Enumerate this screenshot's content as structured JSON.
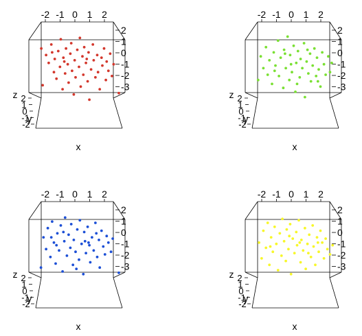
{
  "chart_data": [
    {
      "type": "scatter",
      "point_color": "#D3372C",
      "xlabel": "x",
      "ylabel": "y",
      "zlabel": "z",
      "x_ticks": [
        "-2",
        "-1",
        "0",
        "1",
        "2"
      ],
      "y_ticks": [
        "-2",
        "-1",
        "0",
        "1",
        "2"
      ],
      "z_ticks": [
        "-3",
        "-2",
        "-1",
        "0",
        "1",
        "2"
      ],
      "xlim": [
        -2.5,
        2.5
      ],
      "zlim": [
        -3.5,
        2.5
      ],
      "points": [
        [
          -2.18,
          0.9
        ],
        [
          -2.1,
          -1.9
        ],
        [
          -1.9,
          0.4
        ],
        [
          -1.75,
          -0.2
        ],
        [
          -1.6,
          1.2
        ],
        [
          -1.45,
          -0.9
        ],
        [
          -1.4,
          0.1
        ],
        [
          -1.3,
          -1.4
        ],
        [
          -1.2,
          0.7
        ],
        [
          -1.1,
          -0.5
        ],
        [
          -1.05,
          1.6
        ],
        [
          -0.95,
          -2.2
        ],
        [
          -0.9,
          0.2
        ],
        [
          -0.8,
          -1.0
        ],
        [
          -0.75,
          0.9
        ],
        [
          -0.65,
          -0.3
        ],
        [
          -0.6,
          -1.7
        ],
        [
          -0.5,
          0.5
        ],
        [
          -0.45,
          1.3
        ],
        [
          -0.4,
          -0.8
        ],
        [
          -0.3,
          -2.6
        ],
        [
          -0.25,
          0.0
        ],
        [
          -0.2,
          -1.3
        ],
        [
          -0.1,
          0.8
        ],
        [
          0.0,
          -0.5
        ],
        [
          0.05,
          1.7
        ],
        [
          0.1,
          -2.0
        ],
        [
          0.2,
          0.3
        ],
        [
          0.25,
          -1.1
        ],
        [
          0.3,
          1.0
        ],
        [
          0.4,
          -0.2
        ],
        [
          0.5,
          -1.6
        ],
        [
          0.55,
          0.6
        ],
        [
          0.6,
          -3.0
        ],
        [
          0.7,
          -0.7
        ],
        [
          0.8,
          1.2
        ],
        [
          0.85,
          0.0
        ],
        [
          0.95,
          -1.3
        ],
        [
          1.05,
          0.4
        ],
        [
          1.1,
          -0.9
        ],
        [
          1.2,
          -2.2
        ],
        [
          1.3,
          0.2
        ],
        [
          1.35,
          -0.4
        ],
        [
          1.45,
          0.9
        ],
        [
          1.55,
          -1.5
        ],
        [
          1.6,
          -0.1
        ],
        [
          1.7,
          -0.8
        ],
        [
          1.8,
          0.5
        ],
        [
          1.9,
          -1.2
        ],
        [
          2.0,
          -0.3
        ],
        [
          2.3,
          -2.5
        ],
        [
          -1.55,
          0.6
        ],
        [
          -0.85,
          -0.1
        ],
        [
          0.45,
          0.1
        ]
      ]
    },
    {
      "type": "scatter",
      "point_color": "#7AE033",
      "xlabel": "x",
      "ylabel": "y",
      "zlabel": "z",
      "x_ticks": [
        "-2",
        "-1",
        "0",
        "1",
        "2"
      ],
      "y_ticks": [
        "-2",
        "-1",
        "0",
        "1",
        "2"
      ],
      "z_ticks": [
        "-3",
        "-2",
        "-1",
        "0",
        "1",
        "2"
      ],
      "xlim": [
        -2.5,
        2.5
      ],
      "zlim": [
        -3.5,
        2.5
      ],
      "points": [
        [
          -2.15,
          -1.5
        ],
        [
          -2.0,
          0.3
        ],
        [
          -1.85,
          -0.6
        ],
        [
          -1.7,
          1.0
        ],
        [
          -1.6,
          -1.1
        ],
        [
          -1.5,
          0.0
        ],
        [
          -1.35,
          -1.8
        ],
        [
          -1.25,
          0.6
        ],
        [
          -1.15,
          -0.4
        ],
        [
          -1.0,
          1.5
        ],
        [
          -0.95,
          -1.2
        ],
        [
          -0.85,
          0.2
        ],
        [
          -0.7,
          -2.1
        ],
        [
          -0.65,
          0.8
        ],
        [
          -0.55,
          -0.6
        ],
        [
          -0.45,
          1.8
        ],
        [
          -0.35,
          -1.5
        ],
        [
          -0.3,
          0.4
        ],
        [
          -0.2,
          -0.9
        ],
        [
          -0.1,
          1.1
        ],
        [
          0.0,
          -2.4
        ],
        [
          0.05,
          -0.2
        ],
        [
          0.15,
          0.7
        ],
        [
          0.25,
          -1.3
        ],
        [
          0.3,
          0.1
        ],
        [
          0.4,
          -0.6
        ],
        [
          0.5,
          1.3
        ],
        [
          0.55,
          -2.8
        ],
        [
          0.65,
          -0.1
        ],
        [
          0.75,
          -1.0
        ],
        [
          0.85,
          0.5
        ],
        [
          0.9,
          -1.6
        ],
        [
          1.0,
          -0.4
        ],
        [
          1.1,
          0.9
        ],
        [
          1.2,
          -1.2
        ],
        [
          1.25,
          0.2
        ],
        [
          1.35,
          -0.7
        ],
        [
          1.45,
          -2.0
        ],
        [
          1.55,
          0.6
        ],
        [
          1.65,
          -0.3
        ],
        [
          1.75,
          -1.1
        ],
        [
          1.9,
          0.3
        ],
        [
          2.0,
          -0.9
        ],
        [
          2.1,
          -0.2
        ],
        [
          -1.2,
          -0.8
        ],
        [
          -0.6,
          0.5
        ],
        [
          0.1,
          -1.8
        ],
        [
          0.7,
          0.8
        ],
        [
          1.3,
          -1.6
        ],
        [
          -0.25,
          -0.3
        ]
      ]
    },
    {
      "type": "scatter",
      "point_color": "#1C4FD6",
      "xlabel": "x",
      "ylabel": "y",
      "zlabel": "z",
      "x_ticks": [
        "-2",
        "-1",
        "0",
        "1",
        "2"
      ],
      "y_ticks": [
        "-2",
        "-1",
        "0",
        "1",
        "2"
      ],
      "z_ticks": [
        "-3",
        "-2",
        "-1",
        "0",
        "1",
        "2"
      ],
      "xlim": [
        -2.5,
        2.5
      ],
      "zlim": [
        -3.5,
        2.5
      ],
      "points": [
        [
          -2.2,
          -2.1
        ],
        [
          -2.05,
          0.2
        ],
        [
          -1.9,
          -0.7
        ],
        [
          -1.8,
          0.9
        ],
        [
          -1.65,
          -1.3
        ],
        [
          -1.55,
          1.4
        ],
        [
          -1.45,
          -0.2
        ],
        [
          -1.35,
          -1.8
        ],
        [
          -1.25,
          0.5
        ],
        [
          -1.15,
          -0.8
        ],
        [
          -1.05,
          1.1
        ],
        [
          -0.95,
          -2.4
        ],
        [
          -0.85,
          -0.1
        ],
        [
          -0.8,
          1.7
        ],
        [
          -0.7,
          -1.2
        ],
        [
          -0.6,
          0.4
        ],
        [
          -0.5,
          -0.6
        ],
        [
          -0.45,
          1.2
        ],
        [
          -0.35,
          -1.9
        ],
        [
          -0.3,
          0.0
        ],
        [
          -0.2,
          -0.9
        ],
        [
          -0.1,
          0.8
        ],
        [
          0.0,
          -1.5
        ],
        [
          0.05,
          1.5
        ],
        [
          0.15,
          -0.3
        ],
        [
          0.25,
          -2.6
        ],
        [
          0.3,
          0.6
        ],
        [
          0.4,
          -1.0
        ],
        [
          0.5,
          1.0
        ],
        [
          0.6,
          -0.4
        ],
        [
          0.65,
          -1.7
        ],
        [
          0.75,
          0.2
        ],
        [
          0.85,
          -0.8
        ],
        [
          0.95,
          1.3
        ],
        [
          1.05,
          -1.3
        ],
        [
          1.15,
          0.0
        ],
        [
          1.2,
          -2.1
        ],
        [
          1.3,
          0.7
        ],
        [
          1.4,
          -0.5
        ],
        [
          1.5,
          -1.1
        ],
        [
          1.6,
          0.3
        ],
        [
          1.7,
          -0.2
        ],
        [
          1.85,
          -0.9
        ],
        [
          1.95,
          0.1
        ],
        [
          2.3,
          -2.5
        ],
        [
          -1.6,
          0.2
        ],
        [
          -0.9,
          0.6
        ],
        [
          0.35,
          -0.1
        ],
        [
          1.0,
          0.5
        ],
        [
          -0.15,
          -2.2
        ],
        [
          0.55,
          -0.2
        ],
        [
          -1.3,
          -0.4
        ]
      ]
    },
    {
      "type": "scatter",
      "point_color": "#F7F72A",
      "xlabel": "x",
      "ylabel": "y",
      "zlabel": "z",
      "x_ticks": [
        "-2",
        "-1",
        "0",
        "1",
        "2"
      ],
      "y_ticks": [
        "-2",
        "-1",
        "0",
        "1",
        "2"
      ],
      "z_ticks": [
        "-3",
        "-2",
        "-1",
        "0",
        "1",
        "2"
      ],
      "xlim": [
        -2.5,
        2.5
      ],
      "zlim": [
        -3.5,
        2.5
      ],
      "points": [
        [
          -2.1,
          -0.2
        ],
        [
          -1.95,
          -1.4
        ],
        [
          -1.85,
          0.7
        ],
        [
          -1.7,
          -0.6
        ],
        [
          -1.6,
          1.3
        ],
        [
          -1.5,
          -1.9
        ],
        [
          -1.4,
          0.2
        ],
        [
          -1.3,
          -0.9
        ],
        [
          -1.2,
          1.0
        ],
        [
          -1.1,
          -0.3
        ],
        [
          -1.0,
          -2.3
        ],
        [
          -0.9,
          0.5
        ],
        [
          -0.8,
          -1.2
        ],
        [
          -0.75,
          1.6
        ],
        [
          -0.65,
          -0.1
        ],
        [
          -0.55,
          -1.6
        ],
        [
          -0.5,
          0.8
        ],
        [
          -0.4,
          -0.7
        ],
        [
          -0.3,
          1.2
        ],
        [
          -0.25,
          -2.6
        ],
        [
          -0.15,
          0.1
        ],
        [
          -0.05,
          -1.0
        ],
        [
          0.05,
          0.6
        ],
        [
          0.1,
          -0.4
        ],
        [
          0.2,
          1.5
        ],
        [
          0.3,
          -1.7
        ],
        [
          0.35,
          0.0
        ],
        [
          0.45,
          -0.8
        ],
        [
          0.55,
          0.9
        ],
        [
          0.6,
          -2.2
        ],
        [
          0.7,
          -0.3
        ],
        [
          0.8,
          0.4
        ],
        [
          0.9,
          -1.3
        ],
        [
          1.0,
          1.1
        ],
        [
          1.05,
          -0.5
        ],
        [
          1.15,
          -1.9
        ],
        [
          1.25,
          0.2
        ],
        [
          1.35,
          -0.9
        ],
        [
          1.45,
          0.7
        ],
        [
          1.55,
          -0.2
        ],
        [
          1.65,
          -1.4
        ],
        [
          1.75,
          0.1
        ],
        [
          1.85,
          -0.7
        ],
        [
          2.0,
          -1.1
        ],
        [
          2.15,
          -0.4
        ],
        [
          -1.45,
          -0.5
        ],
        [
          -0.35,
          0.3
        ],
        [
          0.75,
          -1.0
        ],
        [
          1.3,
          -0.2
        ],
        [
          0.25,
          -0.2
        ]
      ]
    }
  ]
}
